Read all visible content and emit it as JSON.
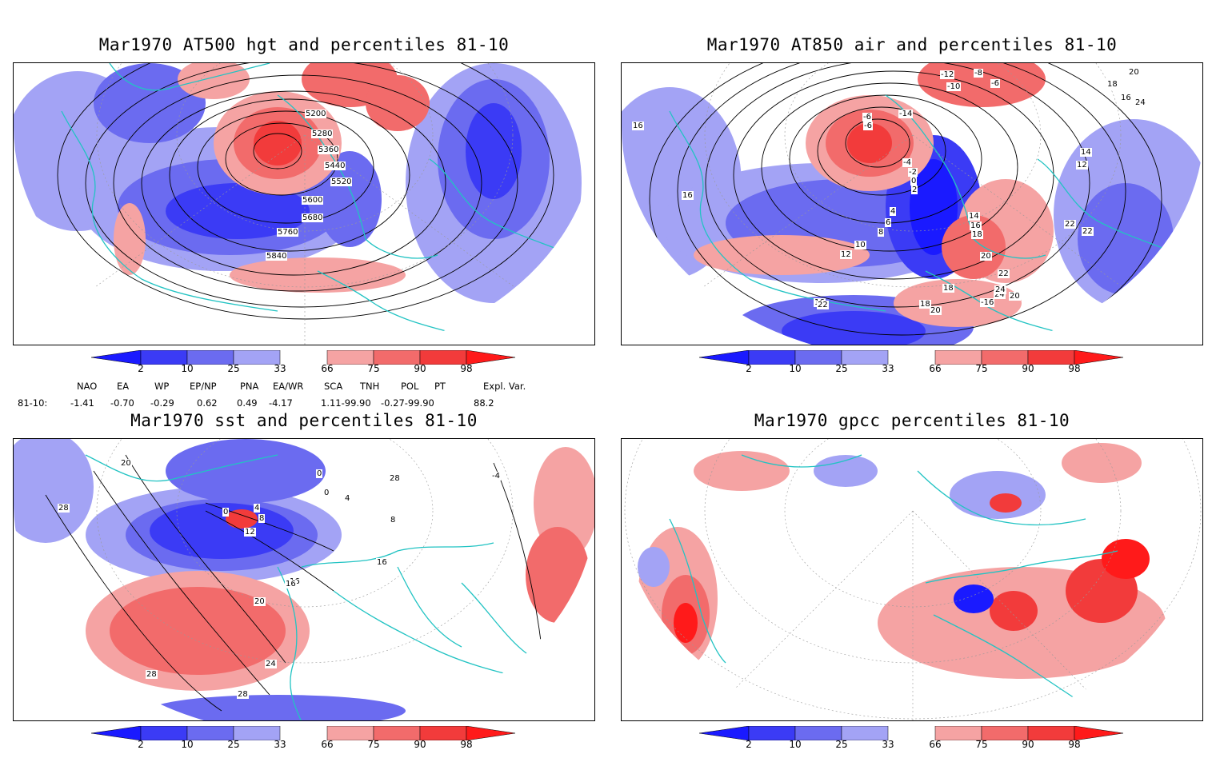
{
  "panels": [
    {
      "title": "Mar1970 AT500 hgt and percentiles 81-10",
      "contour_labels": [
        "5200",
        "5280",
        "5360",
        "5440",
        "5520",
        "5600",
        "5680",
        "5760",
        "5840"
      ]
    },
    {
      "title": "Mar1970 AT850 air and percentiles 81-10",
      "contour_labels": [
        "-12",
        "-8",
        "-6",
        "-10",
        "-6",
        "-6",
        "-14",
        "-4",
        "-2",
        "0",
        "2",
        "4",
        "6",
        "8",
        "10",
        "12",
        "14",
        "16",
        "18",
        "20",
        "22",
        "24",
        "-16",
        "18",
        "18",
        "20",
        "16",
        "16",
        "14",
        "12",
        "16",
        "18",
        "20",
        "24",
        "22",
        "22",
        "20",
        "16",
        "22",
        "24"
      ]
    },
    {
      "title": "Mar1970 sst and percentiles 81-10",
      "contour_labels": [
        "20",
        "28",
        "0",
        "0",
        "4",
        "4",
        "8",
        "12",
        "16",
        "16",
        "20",
        "24",
        "28",
        "28",
        "-4",
        "0",
        "8",
        "16",
        "28"
      ]
    },
    {
      "title": "Mar1970 gpcc percentiles 81-10",
      "contour_labels": []
    }
  ],
  "colorbar": {
    "tick_labels": [
      "2",
      "10",
      "25",
      "33",
      "66",
      "75",
      "90",
      "98"
    ],
    "colors": {
      "below_2": "#1a1aff",
      "c2_10": "#3b3bf5",
      "c10_25": "#6b6bf0",
      "c25_33": "#a3a3f5",
      "c66_75": "#f5a3a3",
      "c75_90": "#f26b6b",
      "c90_98": "#f23b3b",
      "above_98": "#ff1a1a"
    }
  },
  "indices": {
    "header": [
      "NAO",
      "EA",
      "WP",
      "EP/NP",
      "PNA",
      "EA/WR",
      "SCA",
      "TNH",
      "POL",
      "PT",
      "Expl. Var."
    ],
    "row_label": "81-10:",
    "values": [
      "-1.41",
      "-0.70",
      "-0.29",
      "0.62",
      "0.49",
      "-4.17",
      "1.11-99.90",
      "-0.27-99.90",
      "88.2"
    ]
  },
  "map_colors": {
    "coast": "#22c3c3",
    "contour": "#000000",
    "grid": "#999999"
  }
}
